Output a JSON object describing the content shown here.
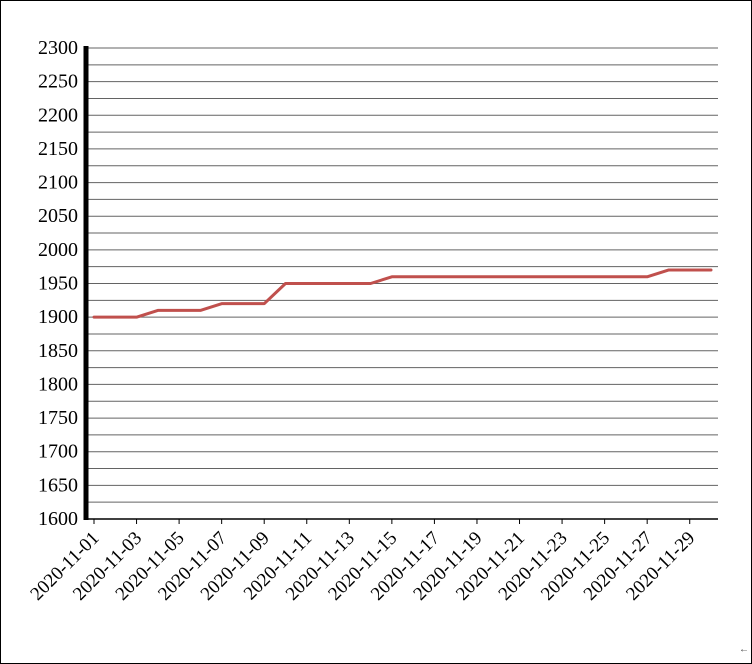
{
  "page": {
    "corner_mark": "←"
  },
  "chart_data": {
    "type": "line",
    "title": "",
    "xlabel": "",
    "ylabel": "",
    "x": [
      "2020-11-01",
      "2020-11-02",
      "2020-11-03",
      "2020-11-04",
      "2020-11-05",
      "2020-11-06",
      "2020-11-07",
      "2020-11-08",
      "2020-11-09",
      "2020-11-10",
      "2020-11-11",
      "2020-11-12",
      "2020-11-13",
      "2020-11-14",
      "2020-11-15",
      "2020-11-16",
      "2020-11-17",
      "2020-11-18",
      "2020-11-19",
      "2020-11-20",
      "2020-11-21",
      "2020-11-22",
      "2020-11-23",
      "2020-11-24",
      "2020-11-25",
      "2020-11-26",
      "2020-11-27",
      "2020-11-28",
      "2020-11-29",
      "2020-11-30"
    ],
    "values": [
      1900,
      1900,
      1900,
      1910,
      1910,
      1910,
      1920,
      1920,
      1920,
      1950,
      1950,
      1950,
      1950,
      1950,
      1960,
      1960,
      1960,
      1960,
      1960,
      1960,
      1960,
      1960,
      1960,
      1960,
      1960,
      1960,
      1960,
      1970,
      1970,
      1970
    ],
    "x_tick_labels": [
      "2020-11-01",
      "2020-11-03",
      "2020-11-05",
      "2020-11-07",
      "2020-11-09",
      "2020-11-11",
      "2020-11-13",
      "2020-11-15",
      "2020-11-17",
      "2020-11-19",
      "2020-11-21",
      "2020-11-23",
      "2020-11-25",
      "2020-11-27",
      "2020-11-29"
    ],
    "y_tick_labels": [
      "1600",
      "1650",
      "1700",
      "1750",
      "1800",
      "1850",
      "1900",
      "1950",
      "2000",
      "2050",
      "2100",
      "2150",
      "2200",
      "2250",
      "2300"
    ],
    "ylim": [
      1600,
      2300
    ],
    "y_tick_step": 50,
    "y_minor_step": 25,
    "grid": true,
    "legend": false,
    "line_color": "#c0504d",
    "grid_color": "#636363",
    "axis_color": "#000000",
    "text_color": "#000000"
  }
}
